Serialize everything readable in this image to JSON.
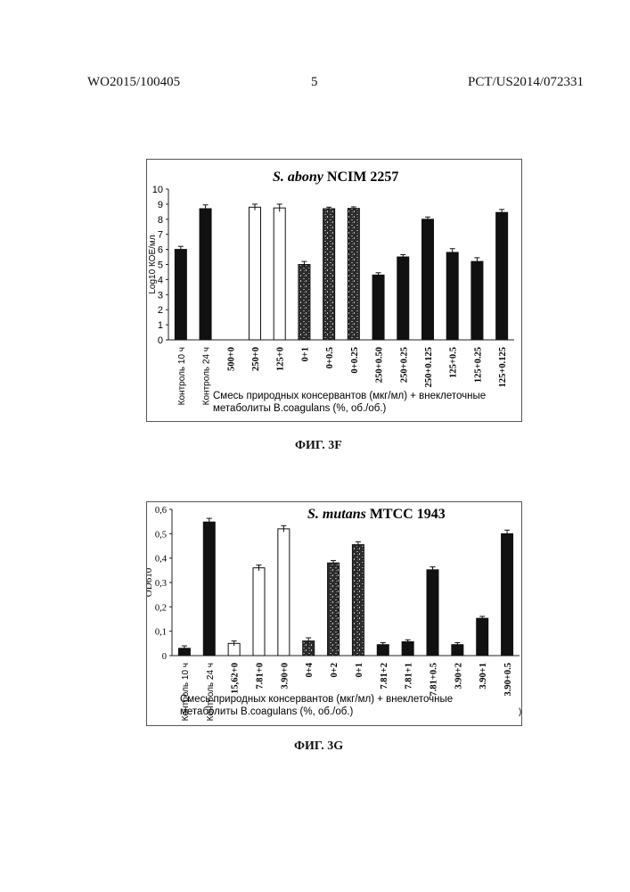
{
  "header": {
    "left": "WO2015/100405",
    "page": "5",
    "right": "PCT/US2014/072331"
  },
  "charts": [
    {
      "caption": "ФИГ. 3F",
      "chart_data": {
        "type": "bar",
        "title_italic": "S. abony",
        "title_rest": " NCIM 2257",
        "ylabel": "Log10 КОЕ/мл",
        "ylim": [
          0,
          10
        ],
        "yticks": [
          "0",
          "1",
          "2",
          "3",
          "4",
          "5",
          "6",
          "7",
          "8",
          "9",
          "10"
        ],
        "xlabel_lines": [
          "Смесь природных консервантов (мкг/мл) + внеклеточные",
          "метаболиты B.coagulans (%, об./об.)"
        ],
        "categories": [
          "Контроль 10 ч",
          "Контроль 24 ч",
          "500+0",
          "250+0",
          "125+0",
          "0+1",
          "0+0.5",
          "0+0.25",
          "250+0.50",
          "250+0.25",
          "250+0.125",
          "125+0.5",
          "125+0.25",
          "125+0.125"
        ],
        "values": [
          6.0,
          8.7,
          0,
          8.8,
          8.75,
          5.0,
          8.7,
          8.72,
          4.3,
          5.5,
          8.0,
          5.8,
          5.2,
          8.45
        ],
        "errors": [
          0.2,
          0.25,
          0,
          0.2,
          0.25,
          0.2,
          0.1,
          0.1,
          0.15,
          0.15,
          0.15,
          0.25,
          0.25,
          0.2
        ],
        "fills": [
          "black",
          "black",
          "white",
          "white",
          "white",
          "pattern",
          "pattern",
          "pattern",
          "black",
          "black",
          "black",
          "black",
          "black",
          "black"
        ]
      }
    },
    {
      "caption": "ФИГ. 3G",
      "chart_data": {
        "type": "bar",
        "title_italic": "S. mutans",
        "title_rest": " MTCC 1943",
        "ylabel": "OD610",
        "ylim": [
          0,
          0.6
        ],
        "yticks": [
          "0",
          "0,1",
          "0,2",
          "0,3",
          "0,4",
          "0,5",
          "0,6"
        ],
        "xlabel_lines": [
          "Смесь природных консервантов (мкг/мл) + внеклеточные",
          "метаболиты B.coagulans (%, об./об.)"
        ],
        "stray_mark": ")",
        "categories": [
          "Контроль 10 ч",
          "Контроль 24 ч",
          "15,62+0",
          "7.81+0",
          "3.90+0",
          "0+4",
          "0+2",
          "0+1",
          "7.81+2",
          "7.81+1",
          "7.81+0.5",
          "3.90+2",
          "3.90+1",
          "3.90+0.5"
        ],
        "values": [
          0.03,
          0.548,
          0.05,
          0.36,
          0.52,
          0.06,
          0.38,
          0.455,
          0.045,
          0.057,
          0.352,
          0.045,
          0.153,
          0.5
        ],
        "errors": [
          0.01,
          0.015,
          0.01,
          0.012,
          0.013,
          0.013,
          0.01,
          0.012,
          0.008,
          0.008,
          0.012,
          0.008,
          0.008,
          0.015
        ],
        "fills": [
          "black",
          "black",
          "white",
          "white",
          "white",
          "pattern",
          "pattern",
          "pattern",
          "black",
          "black",
          "black",
          "black",
          "black",
          "black"
        ]
      }
    }
  ]
}
